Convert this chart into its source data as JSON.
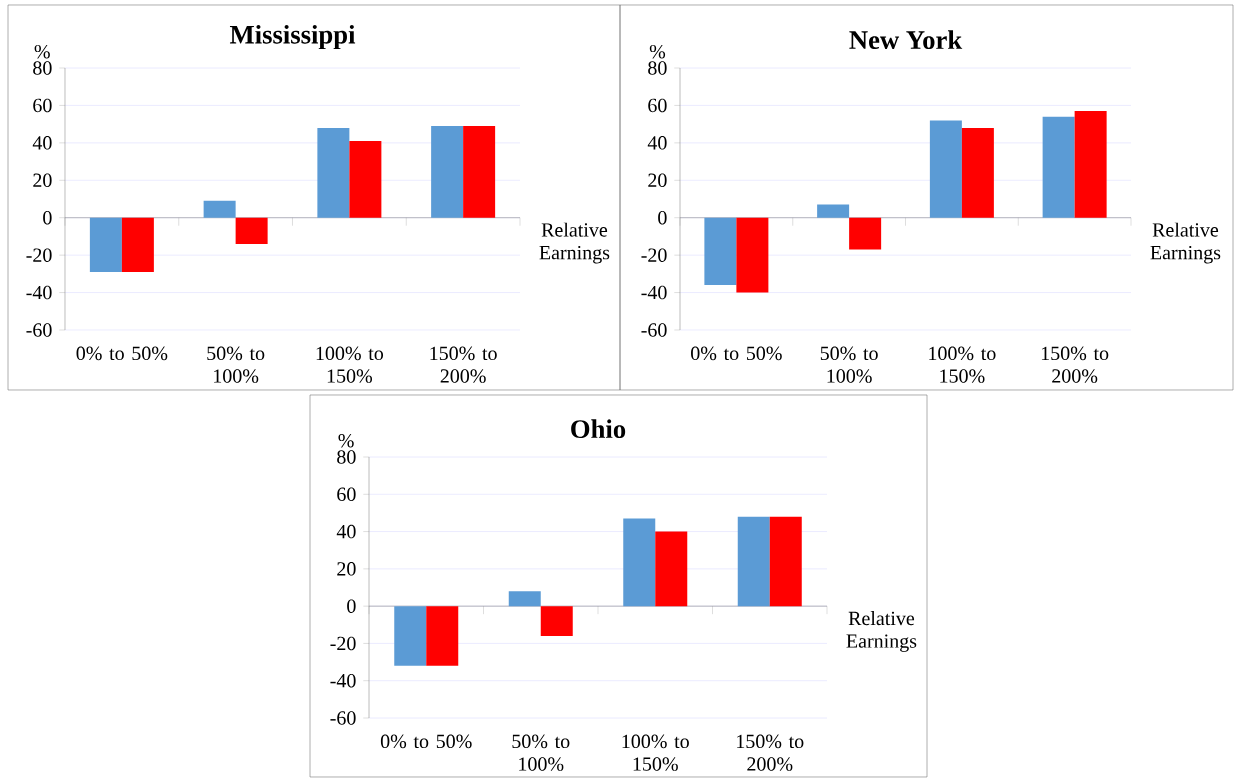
{
  "chart_data": [
    {
      "type": "bar",
      "title": "Mississippi",
      "ylabel": "%",
      "xlabel": "Relative Earnings",
      "categories": [
        "0% to 50%",
        "50% to 100%",
        "100% to 150%",
        "150% to 200%"
      ],
      "series": [
        {
          "color": "#5b9bd5",
          "values": [
            -29,
            9,
            48,
            49
          ]
        },
        {
          "color": "#ff0000",
          "values": [
            -29,
            -14,
            41,
            49
          ]
        }
      ],
      "ylim": [
        -60,
        80
      ],
      "yticks": [
        -60,
        -40,
        -20,
        0,
        20,
        40,
        60,
        80
      ],
      "grid": "y"
    },
    {
      "type": "bar",
      "title": "New York",
      "ylabel": "%",
      "xlabel": "Relative Earnings",
      "categories": [
        "0% to 50%",
        "50% to 100%",
        "100% to 150%",
        "150% to 200%"
      ],
      "series": [
        {
          "color": "#5b9bd5",
          "values": [
            -36,
            7,
            52,
            54
          ]
        },
        {
          "color": "#ff0000",
          "values": [
            -40,
            -17,
            48,
            57
          ]
        }
      ],
      "ylim": [
        -60,
        80
      ],
      "yticks": [
        -60,
        -40,
        -20,
        0,
        20,
        40,
        60,
        80
      ],
      "grid": "y"
    },
    {
      "type": "bar",
      "title": "Ohio",
      "ylabel": "%",
      "xlabel": "Relative Earnings",
      "categories": [
        "0% to 50%",
        "50% to 100%",
        "100% to 150%",
        "150% to 200%"
      ],
      "series": [
        {
          "color": "#5b9bd5",
          "values": [
            -32,
            8,
            47,
            48
          ]
        },
        {
          "color": "#ff0000",
          "values": [
            -32,
            -16,
            40,
            48
          ]
        }
      ],
      "ylim": [
        -60,
        80
      ],
      "yticks": [
        -60,
        -40,
        -20,
        0,
        20,
        40,
        60,
        80
      ],
      "grid": "y"
    }
  ]
}
